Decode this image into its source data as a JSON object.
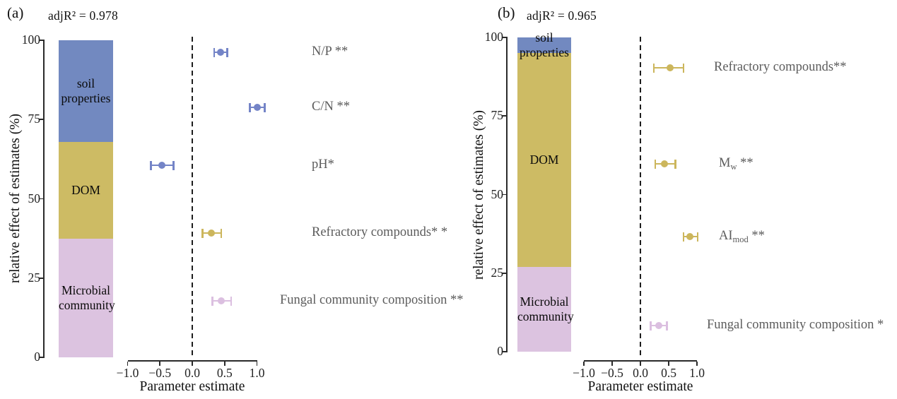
{
  "figure": {
    "background": "#ffffff",
    "axis_color": "#2a2a2a",
    "point_label_color": "#5c5c5c"
  },
  "chart_data": [
    {
      "type": "stacked-bar + forest-plot",
      "panel_letter": "(a)",
      "adj_r2": "adjR² = 0.978",
      "bar": {
        "ylabel": "relative effect of estimates (%)",
        "ylim": [
          0,
          100
        ],
        "yticks": [
          {
            "v": 0,
            "label": "0"
          },
          {
            "v": 25,
            "label": "25"
          },
          {
            "v": 50,
            "label": "50"
          },
          {
            "v": 75,
            "label": "75"
          },
          {
            "v": 100,
            "label": "100"
          }
        ],
        "segments": [
          {
            "label": "soil properties",
            "lines": [
              "soil",
              "properties"
            ],
            "from": 68,
            "to": 100,
            "percent": 32,
            "color": "#7289c0"
          },
          {
            "label": "DOM",
            "lines": [
              "DOM"
            ],
            "from": 37.5,
            "to": 68,
            "percent": 30.5,
            "color": "#cdbb64"
          },
          {
            "label": "Microbial community",
            "lines": [
              "Microbial",
              "community"
            ],
            "from": 0,
            "to": 37.5,
            "percent": 37.5,
            "color": "#dcc3e0"
          }
        ]
      },
      "forest": {
        "xlabel": "Parameter estimate",
        "xlim": [
          -1.0,
          1.0
        ],
        "zero_line": true,
        "xticks": [
          {
            "v": -1.0,
            "label": "−1.0"
          },
          {
            "v": -0.5,
            "label": "−0.5"
          },
          {
            "v": 0.0,
            "label": "0.0"
          },
          {
            "v": 0.5,
            "label": "0.5"
          },
          {
            "v": 1.0,
            "label": "1.0"
          }
        ],
        "points": [
          {
            "pre": "N/P **",
            "sub": "",
            "post": "",
            "estimate": 0.44,
            "ci_low": 0.34,
            "ci_high": 0.54,
            "group": "soil properties",
            "color": "#7484c7"
          },
          {
            "pre": "C/N **",
            "sub": "",
            "post": "",
            "estimate": 1.01,
            "ci_low": 0.89,
            "ci_high": 1.12,
            "group": "soil properties",
            "color": "#7484c7"
          },
          {
            "pre": "pH*",
            "sub": "",
            "post": "",
            "estimate": -0.47,
            "ci_low": -0.64,
            "ci_high": -0.29,
            "group": "soil properties",
            "color": "#7484c7"
          },
          {
            "pre": "Refractory compounds* *",
            "sub": "",
            "post": "",
            "estimate": 0.3,
            "ci_low": 0.16,
            "ci_high": 0.45,
            "group": "DOM",
            "color": "#ccb65c"
          },
          {
            "pre": "Fungal community composition **",
            "sub": "",
            "post": "",
            "estimate": 0.45,
            "ci_low": 0.31,
            "ci_high": 0.6,
            "group": "Microbial community",
            "color": "#dbbfe0"
          }
        ]
      }
    },
    {
      "type": "stacked-bar + forest-plot",
      "panel_letter": "(b)",
      "adj_r2": "adjR² = 0.965",
      "bar": {
        "ylabel": "relative effect of estimates (%)",
        "ylim": [
          0,
          100
        ],
        "yticks": [
          {
            "v": 0,
            "label": "0"
          },
          {
            "v": 25,
            "label": "25"
          },
          {
            "v": 50,
            "label": "50"
          },
          {
            "v": 75,
            "label": "75"
          },
          {
            "v": 100,
            "label": "100"
          }
        ],
        "segments": [
          {
            "label": "soil properties",
            "lines": [
              "soil",
              "properties"
            ],
            "from": 95,
            "to": 100,
            "percent": 5,
            "color": "#7289c0"
          },
          {
            "label": "DOM",
            "lines": [
              "DOM"
            ],
            "from": 27,
            "to": 95,
            "percent": 68,
            "color": "#cdbb64"
          },
          {
            "label": "Microbial community",
            "lines": [
              "Microbial",
              "community"
            ],
            "from": 0,
            "to": 27,
            "percent": 27,
            "color": "#dcc3e0"
          }
        ]
      },
      "forest": {
        "xlabel": "Parameter estimate",
        "xlim": [
          -1.0,
          1.0
        ],
        "zero_line": true,
        "xticks": [
          {
            "v": -1.0,
            "label": "−1.0"
          },
          {
            "v": -0.5,
            "label": "−0.5"
          },
          {
            "v": 0.0,
            "label": "0.0"
          },
          {
            "v": 0.5,
            "label": "0.5"
          },
          {
            "v": 1.0,
            "label": "1.0"
          }
        ],
        "points": [
          {
            "pre": "Refractory compounds**",
            "sub": "",
            "post": "",
            "estimate": 0.52,
            "ci_low": 0.24,
            "ci_high": 0.76,
            "group": "DOM",
            "color": "#ccb65c"
          },
          {
            "pre": "M",
            "sub": "w",
            "post": " **",
            "estimate": 0.43,
            "ci_low": 0.26,
            "ci_high": 0.62,
            "group": "DOM",
            "color": "#ccb65c"
          },
          {
            "pre": "AI",
            "sub": "mod",
            "post": " **",
            "estimate": 0.88,
            "ci_low": 0.76,
            "ci_high": 1.01,
            "group": "DOM",
            "color": "#ccb65c"
          },
          {
            "pre": "Fungal community composition *",
            "sub": "",
            "post": "",
            "estimate": 0.32,
            "ci_low": 0.18,
            "ci_high": 0.47,
            "group": "Microbial community",
            "color": "#dbbfe0"
          }
        ]
      }
    }
  ]
}
